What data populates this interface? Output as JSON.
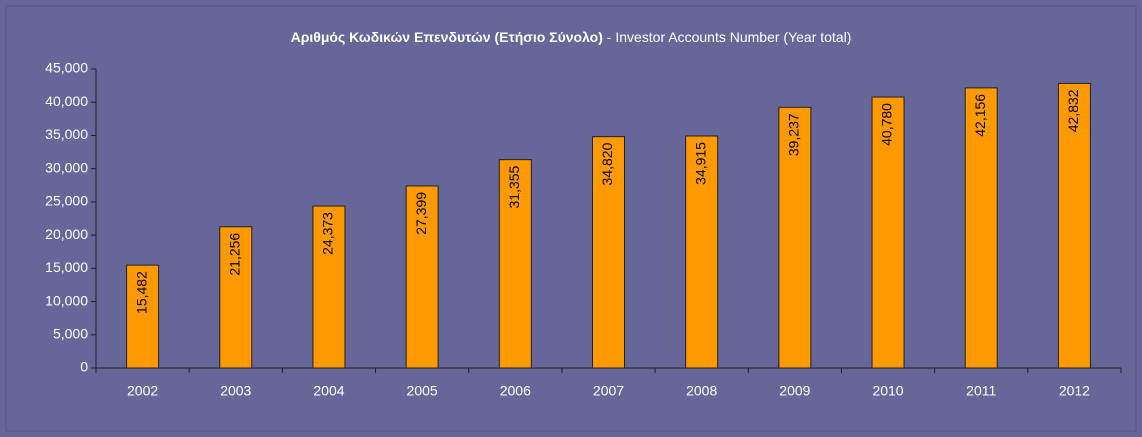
{
  "chart_data": {
    "type": "bar",
    "title": "Αριθμός Κωδικών Επενδυτών (Ετήσιο Σύνολο)",
    "subtitle": "- Investor Accounts Number (Year total)",
    "categories": [
      "2002",
      "2003",
      "2004",
      "2005",
      "2006",
      "2007",
      "2008",
      "2009",
      "2010",
      "2011",
      "2012"
    ],
    "values": [
      15482,
      21256,
      24373,
      27399,
      31355,
      34820,
      34915,
      39237,
      40780,
      42156,
      42832
    ],
    "value_labels": [
      "15,482",
      "21,256",
      "24,373",
      "27,399",
      "31,355",
      "34,820",
      "34,915",
      "39,237",
      "40,780",
      "42,156",
      "42,832"
    ],
    "color": "#ff9900",
    "ylim": [
      0,
      45000
    ],
    "yticks": [
      0,
      {
        "value": 5000,
        "label": "5,000"
      },
      {
        "value": 10000,
        "label": "10,000"
      },
      {
        "value": 15000,
        "label": "15,000"
      },
      {
        "value": 20000,
        "label": "20,000"
      },
      {
        "value": 25000,
        "label": "25,000"
      },
      {
        "value": 30000,
        "label": "30,000"
      },
      {
        "value": 35000,
        "label": "35,000"
      },
      {
        "value": 40000,
        "label": "40,000"
      },
      {
        "value": 45000,
        "label": "45,000"
      }
    ],
    "grid": false
  }
}
